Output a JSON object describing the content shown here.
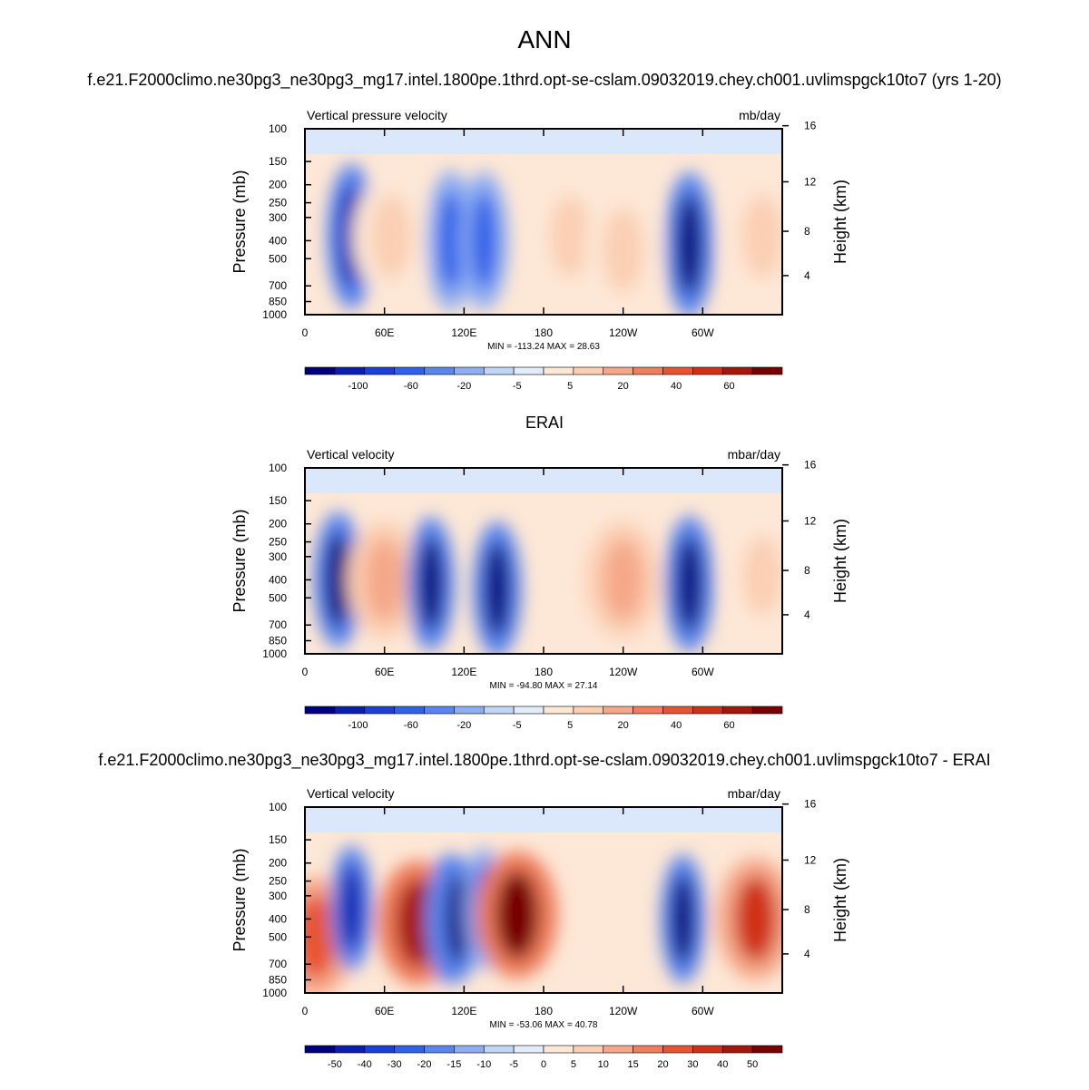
{
  "figure": {
    "title": "ANN"
  },
  "chart_data": [
    {
      "type": "heatmap",
      "title": "f.e21.F2000climo.ne30pg3_ne30pg3_mg17.intel.1800pe.1thrd.opt-se-cslam.09032019.chey.ch001.uvlimspgck10to7 (yrs 1-20)",
      "left_label": "Vertical pressure velocity",
      "right_label": "mb/day",
      "ylabel": "Pressure (mb)",
      "ylabel_right": "Height (km)",
      "x_ticks": [
        "0",
        "60E",
        "120E",
        "180",
        "120W",
        "60W"
      ],
      "x_tick_values": [
        0,
        60,
        120,
        180,
        240,
        300
      ],
      "xlim": [
        0,
        360
      ],
      "pressure_ticks": [
        100,
        150,
        200,
        250,
        300,
        400,
        500,
        700,
        850,
        1000
      ],
      "height_ticks": [
        4,
        8,
        12,
        16
      ],
      "ylim": [
        1000,
        100
      ],
      "y_scale": "log",
      "stats": "MIN = -113.24  MAX =  28.63",
      "colorbar": {
        "labels": [
          "-100",
          "-60",
          "-20",
          "-5",
          "5",
          "20",
          "40",
          "60"
        ],
        "colors": [
          "#00007e",
          "#0a1fb0",
          "#1a40d8",
          "#2f62e8",
          "#5a85ee",
          "#8eaef3",
          "#c0d6f7",
          "#e2ecfb",
          "#fde7d6",
          "#fbcfb3",
          "#f5a889",
          "#ef7e5c",
          "#e75433",
          "#cf3116",
          "#a5160b",
          "#780000"
        ]
      },
      "features": [
        {
          "lon": 35,
          "p": 380,
          "value": -90
        },
        {
          "lon": 65,
          "p": 380,
          "value": 25
        },
        {
          "lon": 110,
          "p": 400,
          "value": -70
        },
        {
          "lon": 135,
          "p": 400,
          "value": -65
        },
        {
          "lon": 200,
          "p": 380,
          "value": 15
        },
        {
          "lon": 240,
          "p": 450,
          "value": 25
        },
        {
          "lon": 290,
          "p": 420,
          "value": -113
        },
        {
          "lon": 345,
          "p": 380,
          "value": 22
        }
      ]
    },
    {
      "type": "heatmap",
      "title": "ERAI",
      "left_label": "Vertical velocity",
      "right_label": "mbar/day",
      "ylabel": "Pressure (mb)",
      "ylabel_right": "Height (km)",
      "x_ticks": [
        "0",
        "60E",
        "120E",
        "180",
        "120W",
        "60W"
      ],
      "x_tick_values": [
        0,
        60,
        120,
        180,
        240,
        300
      ],
      "xlim": [
        0,
        360
      ],
      "pressure_ticks": [
        100,
        150,
        200,
        250,
        300,
        400,
        500,
        700,
        850,
        1000
      ],
      "height_ticks": [
        4,
        8,
        12,
        16
      ],
      "ylim": [
        1000,
        100
      ],
      "y_scale": "log",
      "stats": "MIN = -94.80  MAX =  27.14",
      "colorbar": {
        "labels": [
          "-100",
          "-60",
          "-20",
          "-5",
          "5",
          "20",
          "40",
          "60"
        ],
        "colors": [
          "#00007e",
          "#0a1fb0",
          "#1a40d8",
          "#2f62e8",
          "#5a85ee",
          "#8eaef3",
          "#c0d6f7",
          "#e2ecfb",
          "#fde7d6",
          "#fbcfb3",
          "#f5a889",
          "#ef7e5c",
          "#e75433",
          "#cf3116",
          "#a5160b",
          "#780000"
        ]
      },
      "features": [
        {
          "lon": 25,
          "p": 400,
          "value": -60
        },
        {
          "lon": 60,
          "p": 400,
          "value": 18
        },
        {
          "lon": 95,
          "p": 420,
          "value": -55
        },
        {
          "lon": 145,
          "p": 450,
          "value": -60
        },
        {
          "lon": 240,
          "p": 400,
          "value": 15
        },
        {
          "lon": 290,
          "p": 420,
          "value": -60
        },
        {
          "lon": 345,
          "p": 380,
          "value": 10
        }
      ]
    },
    {
      "type": "heatmap",
      "title": "f.e21.F2000climo.ne30pg3_ne30pg3_mg17.intel.1800pe.1thrd.opt-se-cslam.09032019.chey.ch001.uvlimspgck10to7 - ERAI",
      "left_label": "Vertical velocity",
      "right_label": "mbar/day",
      "ylabel": "Pressure (mb)",
      "ylabel_right": "Height (km)",
      "x_ticks": [
        "0",
        "60E",
        "120E",
        "180",
        "120W",
        "60W"
      ],
      "x_tick_values": [
        0,
        60,
        120,
        180,
        240,
        300
      ],
      "xlim": [
        0,
        360
      ],
      "pressure_ticks": [
        100,
        150,
        200,
        250,
        300,
        400,
        500,
        700,
        850,
        1000
      ],
      "height_ticks": [
        4,
        8,
        12,
        16
      ],
      "ylim": [
        1000,
        100
      ],
      "y_scale": "log",
      "stats": "MIN = -53.06  MAX =  40.78",
      "colorbar": {
        "labels": [
          "-50",
          "-40",
          "-30",
          "-20",
          "-15",
          "-10",
          "-5",
          "0",
          "5",
          "10",
          "15",
          "20",
          "30",
          "40",
          "50"
        ],
        "colors": [
          "#00007e",
          "#0a1fb0",
          "#1a40d8",
          "#2f62e8",
          "#5a85ee",
          "#8eaef3",
          "#c0d6f7",
          "#e2ecfb",
          "#fde7d6",
          "#fbcfb3",
          "#f5a889",
          "#ef7e5c",
          "#e75433",
          "#cf3116",
          "#a5160b",
          "#780000"
        ]
      },
      "features": [
        {
          "lon": 8,
          "p": 500,
          "value": 25
        },
        {
          "lon": 35,
          "p": 350,
          "value": -35
        },
        {
          "lon": 85,
          "p": 420,
          "value": 35
        },
        {
          "lon": 108,
          "p": 400,
          "value": -45
        },
        {
          "lon": 115,
          "p": 400,
          "value": -40
        },
        {
          "lon": 135,
          "p": 350,
          "value": -30
        },
        {
          "lon": 160,
          "p": 380,
          "value": 40
        },
        {
          "lon": 285,
          "p": 400,
          "value": -45
        },
        {
          "lon": 340,
          "p": 400,
          "value": 30
        }
      ]
    }
  ]
}
